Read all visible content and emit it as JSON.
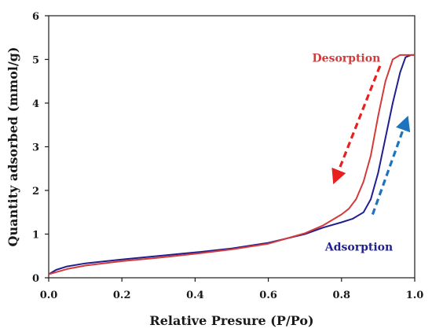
{
  "chart_data": {
    "type": "line",
    "xlabel": "Relative Presure (P/Po)",
    "ylabel": "Quantity adsorbed (mmol/g)",
    "xlim": [
      0,
      1
    ],
    "ylim": [
      0,
      6
    ],
    "x_ticks": [
      "0.0",
      "0.2",
      "0.4",
      "0.6",
      "0.8",
      "1.0"
    ],
    "y_ticks": [
      "0",
      "1",
      "2",
      "3",
      "4",
      "5",
      "6"
    ],
    "grid": false,
    "legend": "none",
    "series": [
      {
        "name": "Adsorption",
        "color": "#1f1f8f",
        "points": [
          [
            0.0,
            0.08
          ],
          [
            0.02,
            0.18
          ],
          [
            0.05,
            0.26
          ],
          [
            0.1,
            0.33
          ],
          [
            0.2,
            0.42
          ],
          [
            0.3,
            0.5
          ],
          [
            0.4,
            0.58
          ],
          [
            0.5,
            0.67
          ],
          [
            0.6,
            0.8
          ],
          [
            0.7,
            1.0
          ],
          [
            0.75,
            1.15
          ],
          [
            0.8,
            1.27
          ],
          [
            0.83,
            1.35
          ],
          [
            0.86,
            1.5
          ],
          [
            0.88,
            1.8
          ],
          [
            0.9,
            2.4
          ],
          [
            0.92,
            3.2
          ],
          [
            0.94,
            4.0
          ],
          [
            0.96,
            4.7
          ],
          [
            0.975,
            5.05
          ],
          [
            0.99,
            5.1
          ],
          [
            1.0,
            5.1
          ]
        ]
      },
      {
        "name": "Desorption",
        "color": "#d43a3a",
        "points": [
          [
            1.0,
            5.1
          ],
          [
            0.98,
            5.1
          ],
          [
            0.96,
            5.1
          ],
          [
            0.94,
            5.0
          ],
          [
            0.92,
            4.5
          ],
          [
            0.9,
            3.7
          ],
          [
            0.88,
            2.8
          ],
          [
            0.86,
            2.2
          ],
          [
            0.84,
            1.8
          ],
          [
            0.82,
            1.58
          ],
          [
            0.8,
            1.45
          ],
          [
            0.75,
            1.2
          ],
          [
            0.7,
            1.02
          ],
          [
            0.6,
            0.78
          ],
          [
            0.5,
            0.65
          ],
          [
            0.4,
            0.55
          ],
          [
            0.3,
            0.46
          ],
          [
            0.2,
            0.38
          ],
          [
            0.1,
            0.28
          ],
          [
            0.05,
            0.2
          ],
          [
            0.0,
            0.08
          ]
        ]
      }
    ],
    "annotations": [
      {
        "text": "Desorption",
        "color": "#d43a3a",
        "x": 0.72,
        "y": 4.95,
        "arrow_from": [
          0.905,
          4.85
        ],
        "arrow_to": [
          0.785,
          2.3
        ]
      },
      {
        "text": "Adsorption",
        "color": "#1f1f8f",
        "x": 0.755,
        "y": 0.62,
        "arrow_from": [
          0.885,
          1.45
        ],
        "arrow_to": [
          0.975,
          3.55
        ]
      }
    ]
  },
  "colors": {
    "desorption_arrow": "#e82020",
    "adsorption_arrow": "#1e73be",
    "axis": "#1a1a1a"
  }
}
